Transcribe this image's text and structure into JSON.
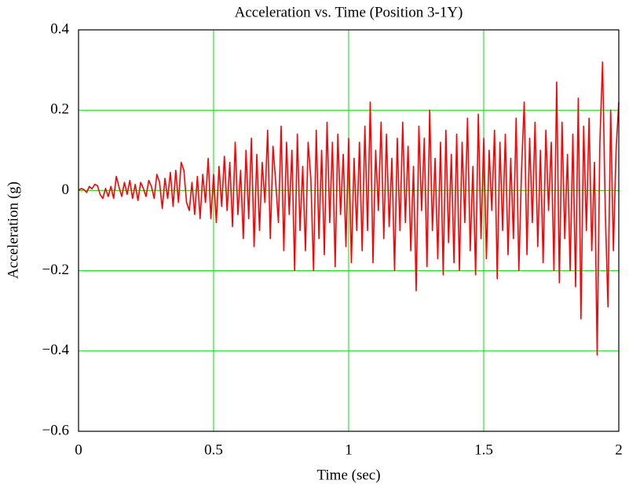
{
  "chart_data": {
    "type": "line",
    "title": "Acceleration vs. Time (Position 3-1Y)",
    "x_label": "Time (sec)",
    "y_label": "Acceleration (g)",
    "xlim": [
      0,
      2
    ],
    "xticks": [
      0,
      0.5,
      1,
      1.5,
      2
    ],
    "ylim": [
      -0.6,
      0.4
    ],
    "yticks": [
      {
        "value": -0.6,
        "label": "−0.6"
      },
      {
        "value": -0.4,
        "label": "−0.4"
      },
      {
        "value": -0.2,
        "label": "−0.2"
      },
      0,
      0.2,
      0.4
    ],
    "grid": true,
    "grid_color": "#00e000",
    "x": [
      0,
      0.01,
      0.02,
      0.03,
      0.04,
      0.05,
      0.06,
      0.07,
      0.08,
      0.09,
      0.1,
      0.11,
      0.12,
      0.13,
      0.14,
      0.15,
      0.16,
      0.17,
      0.18,
      0.19,
      0.2,
      0.21,
      0.22,
      0.23,
      0.24,
      0.25,
      0.26,
      0.27,
      0.28,
      0.29,
      0.3,
      0.31,
      0.32,
      0.33,
      0.34,
      0.35,
      0.36,
      0.37,
      0.38,
      0.39,
      0.4,
      0.41,
      0.42,
      0.43,
      0.44,
      0.45,
      0.46,
      0.47,
      0.48,
      0.49,
      0.5,
      0.51,
      0.52,
      0.53,
      0.54,
      0.55,
      0.56,
      0.57,
      0.58,
      0.59,
      0.6,
      0.61,
      0.62,
      0.63,
      0.64,
      0.65,
      0.66,
      0.67,
      0.68,
      0.69,
      0.7,
      0.71,
      0.72,
      0.73,
      0.74,
      0.75,
      0.76,
      0.77,
      0.78,
      0.79,
      0.8,
      0.81,
      0.82,
      0.83,
      0.84,
      0.85,
      0.86,
      0.87,
      0.88,
      0.89,
      0.9,
      0.91,
      0.92,
      0.93,
      0.94,
      0.95,
      0.96,
      0.97,
      0.98,
      0.99,
      1,
      1.01,
      1.02,
      1.03,
      1.04,
      1.05,
      1.06,
      1.07,
      1.08,
      1.09,
      1.1,
      1.11,
      1.12,
      1.13,
      1.14,
      1.15,
      1.16,
      1.17,
      1.18,
      1.19,
      1.2,
      1.21,
      1.22,
      1.23,
      1.24,
      1.25,
      1.26,
      1.27,
      1.28,
      1.29,
      1.3,
      1.31,
      1.32,
      1.33,
      1.34,
      1.35,
      1.36,
      1.37,
      1.38,
      1.39,
      1.4,
      1.41,
      1.42,
      1.43,
      1.44,
      1.45,
      1.46,
      1.47,
      1.48,
      1.49,
      1.5,
      1.51,
      1.52,
      1.53,
      1.54,
      1.55,
      1.56,
      1.57,
      1.58,
      1.59,
      1.6,
      1.61,
      1.62,
      1.63,
      1.64,
      1.65,
      1.66,
      1.67,
      1.68,
      1.69,
      1.7,
      1.71,
      1.72,
      1.73,
      1.74,
      1.75,
      1.76,
      1.77,
      1.78,
      1.79,
      1.8,
      1.81,
      1.82,
      1.83,
      1.84,
      1.85,
      1.86,
      1.87,
      1.88,
      1.89,
      1.9,
      1.91,
      1.92,
      1.93,
      1.94,
      1.95,
      1.96,
      1.97,
      1.98,
      1.99,
      2
    ],
    "series": [
      {
        "color": "#ff0000",
        "values": [
          0,
          0.005,
          0.002,
          -0.005,
          0.01,
          0.004,
          0.015,
          0.012,
          -0.01,
          -0.02,
          0.005,
          -0.015,
          0.01,
          -0.02,
          0.035,
          0.008,
          -0.015,
          0.02,
          -0.01,
          0.025,
          -0.02,
          0.015,
          -0.025,
          0.02,
          0.005,
          -0.015,
          0.025,
          0.01,
          -0.02,
          0.04,
          0.02,
          -0.045,
          0.03,
          -0.02,
          0.045,
          -0.04,
          0.05,
          -0.03,
          0.07,
          0.05,
          -0.03,
          -0.05,
          0.02,
          -0.06,
          0.035,
          -0.07,
          0.04,
          -0.03,
          0.08,
          -0.07,
          0.04,
          -0.08,
          0.06,
          -0.04,
          0.085,
          -0.05,
          0.07,
          -0.09,
          0.12,
          -0.06,
          0.05,
          -0.12,
          0.1,
          -0.07,
          0.13,
          -0.14,
          0.09,
          -0.1,
          0.07,
          -0.03,
          0.15,
          -0.12,
          0.11,
          0.02,
          -0.08,
          0.16,
          -0.15,
          0.12,
          -0.06,
          0.1,
          -0.2,
          0.14,
          -0.1,
          0.06,
          -0.15,
          0.12,
          0.03,
          -0.2,
          0.15,
          -0.12,
          0.1,
          -0.16,
          0.17,
          -0.08,
          0.12,
          -0.19,
          0.14,
          -0.06,
          0.09,
          -0.14,
          0.13,
          -0.18,
          0.08,
          -0.1,
          0.12,
          -0.15,
          0.16,
          -0.1,
          0.22,
          -0.18,
          0.1,
          -0.05,
          0.17,
          -0.12,
          0.14,
          -0.09,
          0.08,
          -0.2,
          0.13,
          -0.1,
          0.17,
          -0.08,
          0.11,
          -0.15,
          0.06,
          -0.25,
          0.16,
          -0.05,
          0.13,
          -0.19,
          0.2,
          -0.1,
          0.08,
          -0.17,
          0.12,
          -0.21,
          0.15,
          -0.13,
          0.09,
          -0.18,
          0.14,
          -0.2,
          0.12,
          -0.08,
          0.18,
          -0.15,
          0.06,
          -0.21,
          0.19,
          -0.12,
          0.13,
          -0.17,
          0.1,
          -0.05,
          0.15,
          -0.22,
          0.12,
          -0.1,
          0.14,
          -0.16,
          0.08,
          -0.12,
          0.18,
          -0.2,
          0.05,
          0.22,
          -0.16,
          0.13,
          -0.08,
          0.17,
          -0.14,
          0.1,
          -0.18,
          0.15,
          -0.05,
          0.12,
          -0.2,
          0.27,
          -0.23,
          0.17,
          -0.12,
          0.09,
          -0.2,
          0.14,
          -0.24,
          0.23,
          -0.32,
          0.16,
          -0.1,
          0.18,
          -0.15,
          0.07,
          -0.41,
          0.12,
          0.32,
          -0.05,
          -0.29,
          0.2,
          -0.15,
          0.1,
          0.22
        ]
      }
    ]
  }
}
